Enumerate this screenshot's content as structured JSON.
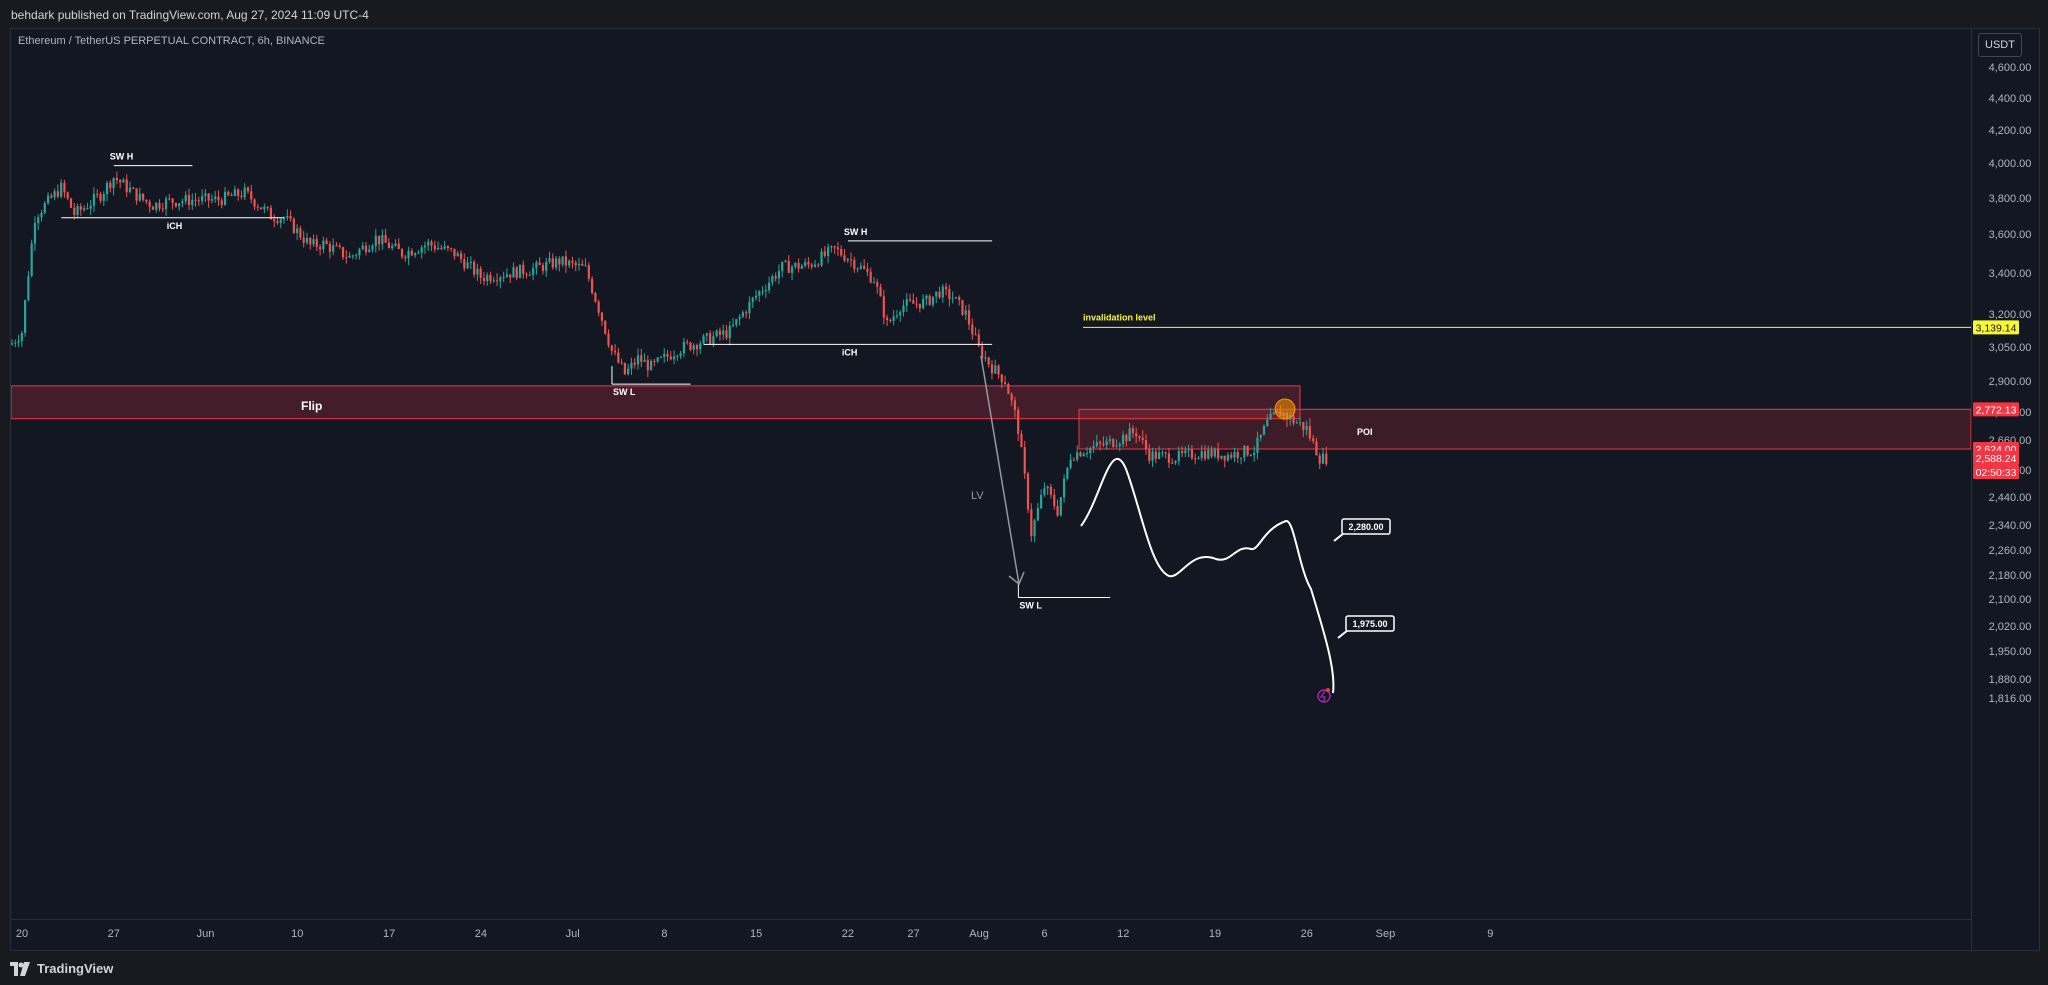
{
  "header": {
    "publisher_line": "behdark published on TradingView.com, Aug 27, 2024 11:09 UTC-4"
  },
  "symbol": {
    "description": "Ethereum / TetherUS PERPETUAL CONTRACT, 6h, BINANCE"
  },
  "axis": {
    "currency_button": "USDT"
  },
  "footer": {
    "brand": "TradingView"
  },
  "chart_data": {
    "type": "candlestick",
    "title": "Ethereum / TetherUS PERPETUAL CONTRACT, 6h, BINANCE",
    "y_ticks": [
      "4,600.00",
      "4,400.00",
      "4,200.00",
      "4,000.00",
      "3,800.00",
      "3,600.00",
      "3,400.00",
      "3,200.00",
      "3,050.00",
      "2,900.00",
      "2,760.00",
      "2,660.00",
      "2,540.00",
      "2,440.00",
      "2,340.00",
      "2,260.00",
      "2,180.00",
      "2,100.00",
      "2,020.00",
      "1,950.00",
      "1,880.00",
      "1,816.00"
    ],
    "y_tick_values": [
      4600,
      4400,
      4200,
      4000,
      3800,
      3600,
      3400,
      3200,
      3050,
      2900,
      2760,
      2660,
      2540,
      2440,
      2340,
      2260,
      2180,
      2100,
      2020,
      1950,
      1880,
      1816
    ],
    "x_ticks": [
      "20",
      "27",
      "Jun",
      "10",
      "17",
      "24",
      "Jul",
      "8",
      "15",
      "22",
      "27",
      "Aug",
      "6",
      "12",
      "19",
      "26",
      "Sep",
      "9"
    ],
    "x_tick_values": [
      "2024-05-20",
      "2024-05-27",
      "2024-06-03",
      "2024-06-10",
      "2024-06-17",
      "2024-06-24",
      "2024-07-01",
      "2024-07-08",
      "2024-07-15",
      "2024-07-22",
      "2024-07-27",
      "2024-08-01",
      "2024-08-06",
      "2024-08-12",
      "2024-08-19",
      "2024-08-26",
      "2024-09-01",
      "2024-09-09"
    ],
    "price_path": [
      [
        "2024-05-16",
        3060
      ],
      [
        "2024-05-19",
        3050
      ],
      [
        "2024-05-20",
        3120
      ],
      [
        "2024-05-21",
        3700
      ],
      [
        "2024-05-22",
        3780
      ],
      [
        "2024-05-23",
        3860
      ],
      [
        "2024-05-24",
        3710
      ],
      [
        "2024-05-25",
        3760
      ],
      [
        "2024-05-26",
        3820
      ],
      [
        "2024-05-27",
        3920
      ],
      [
        "2024-05-28",
        3860
      ],
      [
        "2024-05-29",
        3800
      ],
      [
        "2024-05-30",
        3760
      ],
      [
        "2024-05-31",
        3780
      ],
      [
        "2024-06-02",
        3790
      ],
      [
        "2024-06-04",
        3790
      ],
      [
        "2024-06-06",
        3830
      ],
      [
        "2024-06-08",
        3700
      ],
      [
        "2024-06-09",
        3690
      ],
      [
        "2024-06-11",
        3540
      ],
      [
        "2024-06-12",
        3550
      ],
      [
        "2024-06-14",
        3480
      ],
      [
        "2024-06-16",
        3580
      ],
      [
        "2024-06-18",
        3500
      ],
      [
        "2024-06-20",
        3550
      ],
      [
        "2024-06-22",
        3500
      ],
      [
        "2024-06-24",
        3380
      ],
      [
        "2024-06-26",
        3400
      ],
      [
        "2024-06-28",
        3420
      ],
      [
        "2024-06-30",
        3460
      ],
      [
        "2024-07-02",
        3420
      ],
      [
        "2024-07-04",
        3030
      ],
      [
        "2024-07-05",
        2930
      ],
      [
        "2024-07-06",
        3000
      ],
      [
        "2024-07-07",
        2960
      ],
      [
        "2024-07-09",
        3040
      ],
      [
        "2024-07-11",
        3080
      ],
      [
        "2024-07-13",
        3120
      ],
      [
        "2024-07-15",
        3290
      ],
      [
        "2024-07-17",
        3430
      ],
      [
        "2024-07-19",
        3440
      ],
      [
        "2024-07-21",
        3520
      ],
      [
        "2024-07-22",
        3480
      ],
      [
        "2024-07-24",
        3370
      ],
      [
        "2024-07-25",
        3150
      ],
      [
        "2024-07-26",
        3240
      ],
      [
        "2024-07-28",
        3260
      ],
      [
        "2024-07-29",
        3310
      ],
      [
        "2024-07-30",
        3280
      ],
      [
        "2024-07-31",
        3200
      ],
      [
        "2024-08-01",
        3040
      ],
      [
        "2024-08-02",
        2960
      ],
      [
        "2024-08-03",
        2900
      ],
      [
        "2024-08-04",
        2700
      ],
      [
        "2024-08-05",
        2310
      ],
      [
        "2024-08-06",
        2480
      ],
      [
        "2024-08-07",
        2390
      ],
      [
        "2024-08-08",
        2600
      ],
      [
        "2024-08-09",
        2620
      ],
      [
        "2024-08-11",
        2650
      ],
      [
        "2024-08-13",
        2690
      ],
      [
        "2024-08-14",
        2600
      ],
      [
        "2024-08-16",
        2590
      ],
      [
        "2024-08-18",
        2610
      ],
      [
        "2024-08-20",
        2600
      ],
      [
        "2024-08-22",
        2620
      ],
      [
        "2024-08-23",
        2720
      ],
      [
        "2024-08-24",
        2760
      ],
      [
        "2024-08-25",
        2730
      ],
      [
        "2024-08-26",
        2700
      ],
      [
        "2024-08-27",
        2588
      ]
    ],
    "zones": [
      {
        "label": "Flip",
        "top": 2878,
        "bottom": 2736
      },
      {
        "label": "POI",
        "top": 2772.13,
        "bottom": 2624.0
      }
    ],
    "horizontal_levels": [
      {
        "label": "SW H",
        "price": 3985,
        "from": "2024-05-27",
        "to": "2024-06-02"
      },
      {
        "label": "iCH",
        "price": 3690,
        "from": "2024-05-23",
        "to": "2024-06-09"
      },
      {
        "label": "SW H",
        "price": 3565,
        "from": "2024-07-22",
        "to": "2024-08-02"
      },
      {
        "label": "iCH",
        "price": 3062,
        "from": "2024-07-11",
        "to": "2024-08-02"
      },
      {
        "label": "SW L",
        "price": 2886,
        "from": "2024-07-04",
        "to": "2024-07-10"
      },
      {
        "label": "SW L",
        "price": 2105,
        "from": "2024-08-04",
        "to": "2024-08-11"
      }
    ],
    "invalidation": {
      "label": "invalidation level",
      "price": 3139.14
    },
    "price_tags": [
      {
        "text": "3,139.14",
        "price": 3139.14,
        "color": "#f7f734",
        "text_color": "#131722"
      },
      {
        "text": "2,772.13",
        "price": 2772.13,
        "color": "#f23645",
        "text_color": "#ffffff"
      },
      {
        "text": "2,624.00",
        "price": 2624.0,
        "color": "#f23645",
        "text_color": "#ffffff"
      },
      {
        "text": "2,588.24",
        "price": 2588.24,
        "color": "#f23645",
        "text_color": "#ffffff"
      }
    ],
    "countdown": "02:50:33",
    "annotations": [
      {
        "text": "Flip"
      },
      {
        "text": "POI"
      },
      {
        "text": "LV"
      },
      {
        "text": "invalidation level"
      }
    ],
    "targets": [
      "2,280.00",
      "1,975.00"
    ],
    "colors": {
      "up": "#26a69a",
      "down": "#ef5350",
      "zone": "#f23645",
      "projection": "#ffffff",
      "invalidation": "#f7f734",
      "marker": "#ff9800"
    }
  }
}
